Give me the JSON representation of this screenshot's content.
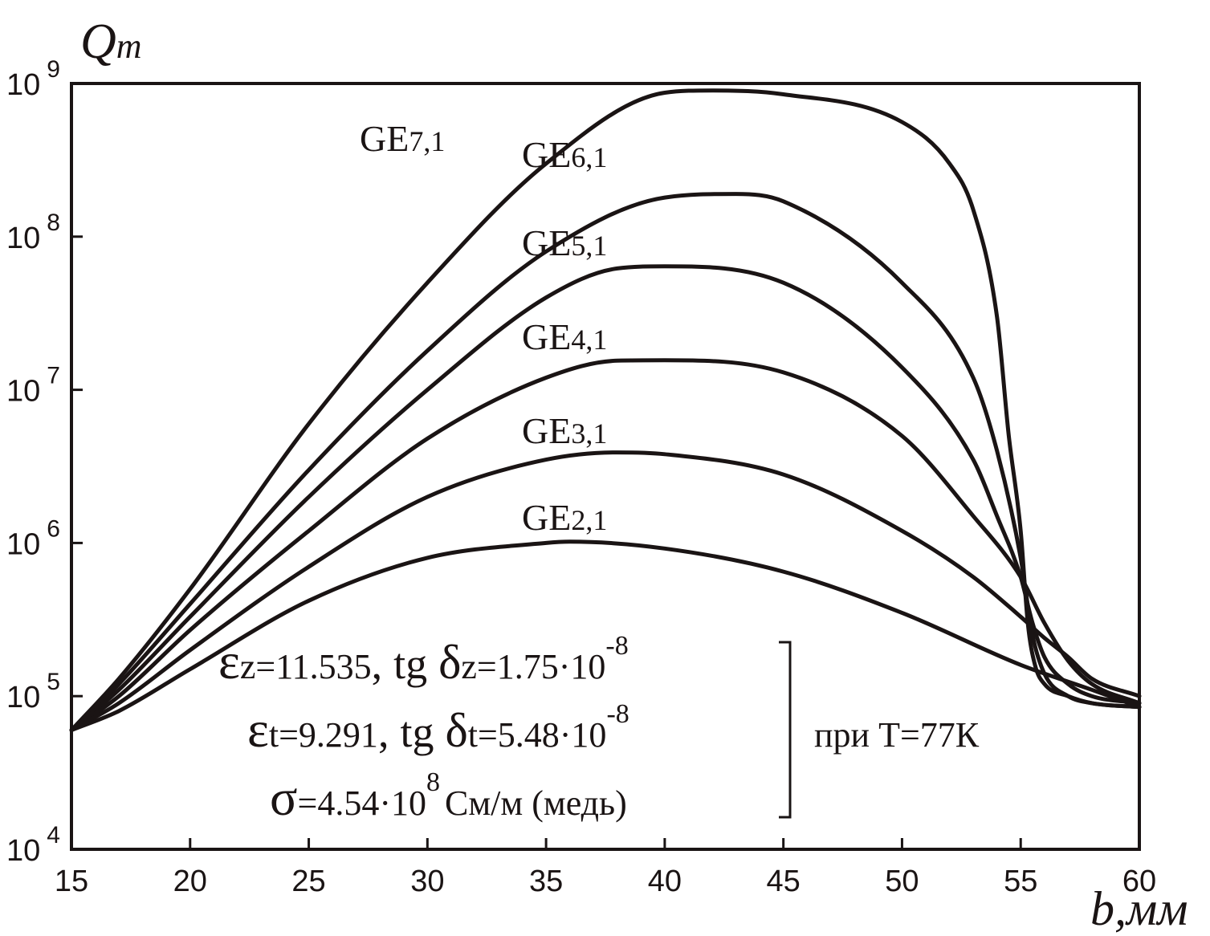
{
  "chart_data": {
    "type": "line",
    "xlabel": "b,мм",
    "ylabel": "Qm",
    "ylabel_main": "Q",
    "ylabel_sub": "m",
    "xlim": [
      15,
      60
    ],
    "ylim": [
      10000,
      1000000000
    ],
    "yscale": "log",
    "grid": false,
    "x_ticks": [
      "15",
      "20",
      "25",
      "30",
      "35",
      "40",
      "45",
      "50",
      "55",
      "60"
    ],
    "y_ticks": [
      {
        "base": "10",
        "exp": "4",
        "value": 10000
      },
      {
        "base": "10",
        "exp": "5",
        "value": 100000
      },
      {
        "base": "10",
        "exp": "6",
        "value": 1000000
      },
      {
        "base": "10",
        "exp": "7",
        "value": 10000000
      },
      {
        "base": "10",
        "exp": "8",
        "value": 100000000
      },
      {
        "base": "10",
        "exp": "9",
        "value": 1000000000
      }
    ],
    "series": [
      {
        "name": "GE7,1",
        "label_main": "GE",
        "label_sub": "7,1",
        "x": [
          15,
          17,
          20,
          25,
          30,
          35,
          40,
          42,
          45,
          50,
          52,
          53,
          54,
          54.5,
          55,
          55.3,
          55.6,
          56,
          57,
          58,
          60
        ],
        "y": [
          60000,
          130000,
          500000,
          6000000,
          50000000,
          300000000,
          870000000,
          900000000,
          850000000,
          560000000,
          300000000,
          150000000,
          30000000,
          5000000,
          1200000,
          300000,
          160000,
          120000,
          100000,
          90000,
          85000
        ]
      },
      {
        "name": "GE6,1",
        "label_main": "GE",
        "label_sub": "6,1",
        "x": [
          15,
          17,
          20,
          25,
          30,
          35,
          40,
          43,
          45,
          50,
          53,
          54,
          55,
          55.5,
          56,
          57,
          58,
          60
        ],
        "y": [
          60000,
          120000,
          400000,
          3000000,
          18000000,
          80000000,
          180000000,
          190000000,
          170000000,
          50000000,
          12000000,
          4000000,
          800000,
          250000,
          140000,
          100000,
          90000,
          85000
        ]
      },
      {
        "name": "GE5,1",
        "label_main": "GE",
        "label_sub": "5,1",
        "x": [
          15,
          17,
          20,
          25,
          30,
          35,
          38,
          40,
          45,
          50,
          53,
          54,
          55,
          55.5,
          56,
          57,
          58,
          60
        ],
        "y": [
          60000,
          110000,
          330000,
          2000000,
          10000000,
          40000000,
          62000000,
          64000000,
          50000000,
          14000000,
          3500000,
          1500000,
          600000,
          300000,
          180000,
          120000,
          100000,
          90000
        ]
      },
      {
        "name": "GE4,1",
        "label_main": "GE",
        "label_sub": "4,1",
        "x": [
          15,
          17,
          20,
          25,
          30,
          35,
          38,
          40,
          45,
          50,
          53,
          55,
          56,
          57,
          58,
          60
        ],
        "y": [
          60000,
          100000,
          270000,
          1200000,
          4800000,
          12000000,
          15500000,
          15600000,
          13000000,
          5000000,
          1500000,
          600000,
          300000,
          170000,
          120000,
          90000
        ]
      },
      {
        "name": "GE3,1",
        "label_main": "GE",
        "label_sub": "3,1",
        "x": [
          15,
          17,
          20,
          25,
          30,
          35,
          38,
          40,
          45,
          50,
          53,
          55,
          56,
          57,
          58,
          60
        ],
        "y": [
          60000,
          90000,
          200000,
          700000,
          2000000,
          3500000,
          3900000,
          3800000,
          2800000,
          1200000,
          600000,
          330000,
          240000,
          180000,
          130000,
          100000
        ]
      },
      {
        "name": "GE2,1",
        "label_main": "GE",
        "label_sub": "2,1",
        "x": [
          15,
          17,
          20,
          25,
          30,
          35,
          36,
          40,
          45,
          50,
          55,
          58,
          60
        ],
        "y": [
          60000,
          80000,
          150000,
          420000,
          800000,
          1000000,
          1020000,
          920000,
          650000,
          350000,
          160000,
          110000,
          85000
        ]
      }
    ],
    "annotations": {
      "line1": {
        "eps": "ε",
        "eps_sub": "z",
        "value": "=11.535",
        "comma": ",",
        "tg": "tg",
        "delta": "δ",
        "delta_sub": "z",
        "rest": "=1.75·10",
        "exp": "-8"
      },
      "line2": {
        "eps": "ε",
        "eps_sub": "t",
        "value": "=9.291",
        "comma": ",",
        "tg": "tg",
        "delta": "δ",
        "delta_sub": "t",
        "rest": "=5.48·10",
        "exp": "-8"
      },
      "line3": {
        "sigma": "σ",
        "value": "=4.54·10",
        "exp": "8",
        "unit": "См/м (медь)"
      },
      "condition": "при Т=77К"
    }
  }
}
